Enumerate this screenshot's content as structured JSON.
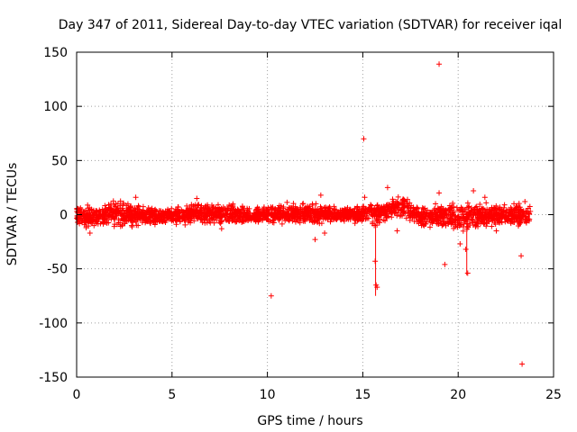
{
  "chart_data": {
    "type": "scatter",
    "title": "Day 347 of 2011, Sidereal Day-to-day VTEC variation (SDTVAR) for receiver iqal",
    "xlabel": "GPS time / hours",
    "ylabel": "SDTVAR / TECUs",
    "xlim": [
      0,
      25
    ],
    "ylim": [
      -150,
      150
    ],
    "xticks": [
      "0",
      "5",
      "10",
      "15",
      "20",
      "25"
    ],
    "yticks": [
      "150",
      "100",
      "50",
      "0",
      "-50",
      "-100",
      "-150"
    ],
    "grid": true,
    "marker": "+",
    "color": "#ff0000",
    "series": [
      {
        "name": "SDTVAR",
        "outliers": [
          {
            "x": 0.5,
            "y": -12
          },
          {
            "x": 0.7,
            "y": -17
          },
          {
            "x": 3.1,
            "y": 16
          },
          {
            "x": 6.3,
            "y": 15
          },
          {
            "x": 7.6,
            "y": -13
          },
          {
            "x": 10.2,
            "y": -75
          },
          {
            "x": 12.5,
            "y": -23
          },
          {
            "x": 12.8,
            "y": 18
          },
          {
            "x": 13.0,
            "y": -17
          },
          {
            "x": 15.05,
            "y": 70
          },
          {
            "x": 15.1,
            "y": 16
          },
          {
            "x": 15.6,
            "y": -10
          },
          {
            "x": 15.65,
            "y": -43
          },
          {
            "x": 15.7,
            "y": -65
          },
          {
            "x": 15.75,
            "y": -67
          },
          {
            "x": 16.3,
            "y": 25
          },
          {
            "x": 16.8,
            "y": -15
          },
          {
            "x": 19.0,
            "y": 139
          },
          {
            "x": 19.0,
            "y": 20
          },
          {
            "x": 19.3,
            "y": -46
          },
          {
            "x": 20.1,
            "y": -27
          },
          {
            "x": 20.4,
            "y": -32
          },
          {
            "x": 20.5,
            "y": -54
          },
          {
            "x": 20.8,
            "y": 22
          },
          {
            "x": 21.4,
            "y": 16
          },
          {
            "x": 22.0,
            "y": -15
          },
          {
            "x": 23.3,
            "y": -38
          },
          {
            "x": 23.35,
            "y": -138
          },
          {
            "x": 23.5,
            "y": 12
          }
        ],
        "band": [
          {
            "x": 0.0,
            "y": 0,
            "spread": 12
          },
          {
            "x": 1.0,
            "y": -3,
            "spread": 14
          },
          {
            "x": 2.0,
            "y": 1,
            "spread": 16
          },
          {
            "x": 3.0,
            "y": 0,
            "spread": 14
          },
          {
            "x": 4.0,
            "y": -2,
            "spread": 10
          },
          {
            "x": 5.0,
            "y": -1,
            "spread": 10
          },
          {
            "x": 6.0,
            "y": 0,
            "spread": 12
          },
          {
            "x": 7.0,
            "y": 1,
            "spread": 12
          },
          {
            "x": 8.0,
            "y": 0,
            "spread": 12
          },
          {
            "x": 9.0,
            "y": -1,
            "spread": 10
          },
          {
            "x": 10.0,
            "y": 0,
            "spread": 10
          },
          {
            "x": 11.0,
            "y": 1,
            "spread": 12
          },
          {
            "x": 12.0,
            "y": 0,
            "spread": 12
          },
          {
            "x": 13.0,
            "y": 1,
            "spread": 10
          },
          {
            "x": 14.0,
            "y": 0,
            "spread": 8
          },
          {
            "x": 15.0,
            "y": 0,
            "spread": 10
          },
          {
            "x": 16.0,
            "y": 2,
            "spread": 14
          },
          {
            "x": 17.0,
            "y": 8,
            "spread": 12
          },
          {
            "x": 18.0,
            "y": -2,
            "spread": 12
          },
          {
            "x": 19.0,
            "y": 0,
            "spread": 14
          },
          {
            "x": 20.0,
            "y": -2,
            "spread": 16
          },
          {
            "x": 21.0,
            "y": -1,
            "spread": 14
          },
          {
            "x": 22.0,
            "y": 0,
            "spread": 14
          },
          {
            "x": 23.0,
            "y": -1,
            "spread": 14
          },
          {
            "x": 23.8,
            "y": 0,
            "spread": 12
          }
        ]
      }
    ]
  }
}
